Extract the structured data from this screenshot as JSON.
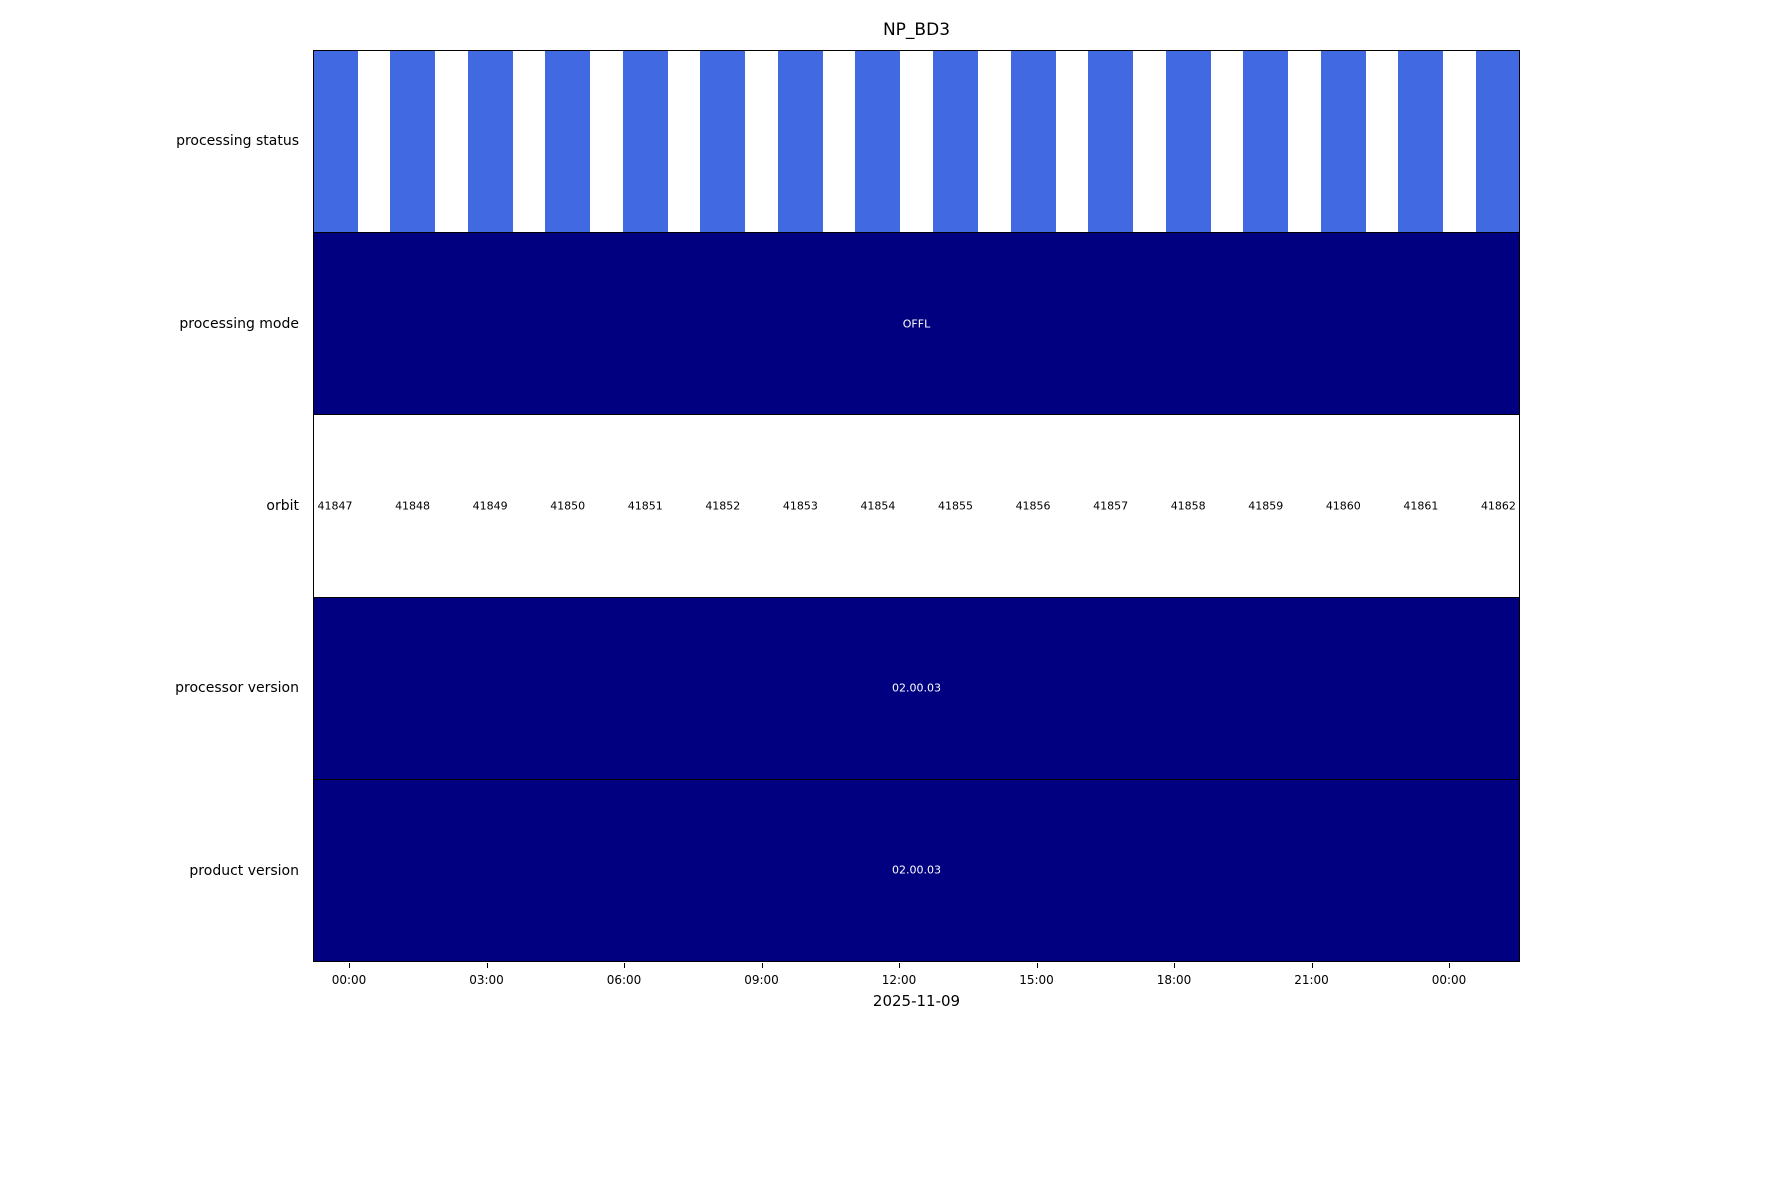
{
  "chart_data": {
    "type": "timeline",
    "title": "NP_BD3",
    "xlabel": "2025-11-09",
    "x_ticks": [
      "00:00",
      "03:00",
      "06:00",
      "09:00",
      "12:00",
      "15:00",
      "18:00",
      "21:00",
      "00:00"
    ],
    "orbits": [
      "41847",
      "41848",
      "41849",
      "41850",
      "41851",
      "41852",
      "41853",
      "41854",
      "41855",
      "41856",
      "41857",
      "41858",
      "41859",
      "41860",
      "41861",
      "41862"
    ],
    "rows": [
      {
        "label": "processing status",
        "type": "orbit-bars",
        "note": "one blue bar per orbit, all same status"
      },
      {
        "label": "processing mode",
        "type": "span",
        "value": "OFFL"
      },
      {
        "label": "orbit",
        "type": "orbit-labels"
      },
      {
        "label": "processor version",
        "type": "span",
        "value": "02.00.03"
      },
      {
        "label": "product version",
        "type": "span",
        "value": "02.00.03"
      }
    ],
    "colors": {
      "status_bar": "#4169e1",
      "span_fill": "#000080",
      "span_text": "#ffffff"
    },
    "legend": "none",
    "grid": "off"
  }
}
